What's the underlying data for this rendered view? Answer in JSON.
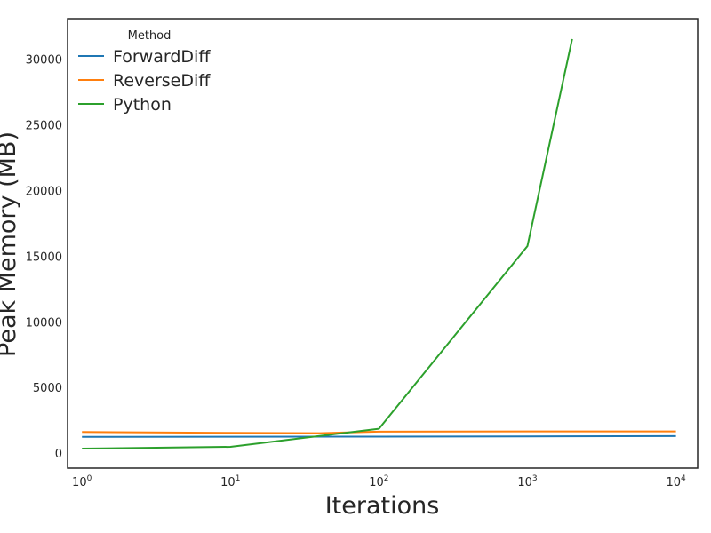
{
  "chart_data": {
    "type": "line",
    "title": "",
    "xlabel": "Iterations",
    "ylabel": "Peak Memory (MB)",
    "xscale": "log",
    "xlim": [
      0.8,
      14000
    ],
    "ylim": [
      -1100,
      33100
    ],
    "grid": false,
    "legend": {
      "title": "Method",
      "position": "top-left"
    },
    "x_ticks": [
      {
        "base": "10",
        "exp": "0"
      },
      {
        "base": "10",
        "exp": "1"
      },
      {
        "base": "10",
        "exp": "2"
      },
      {
        "base": "10",
        "exp": "3"
      },
      {
        "base": "10",
        "exp": "4"
      }
    ],
    "y_ticks": [
      0,
      5000,
      10000,
      15000,
      20000,
      25000,
      30000
    ],
    "series": [
      {
        "name": "ForwardDiff",
        "color": "#1f77b4",
        "x": [
          1,
          10,
          100,
          1000,
          10000
        ],
        "y": [
          1280,
          1290,
          1300,
          1320,
          1340
        ]
      },
      {
        "name": "ReverseDiff",
        "color": "#ff7f0e",
        "x": [
          1,
          10,
          40,
          100,
          1000,
          10000
        ],
        "y": [
          1650,
          1580,
          1560,
          1680,
          1700,
          1700
        ]
      },
      {
        "name": "Python",
        "color": "#2ca02c",
        "x": [
          1,
          10,
          100,
          1000,
          2000
        ],
        "y": [
          390,
          520,
          1900,
          15800,
          31550
        ]
      }
    ]
  }
}
